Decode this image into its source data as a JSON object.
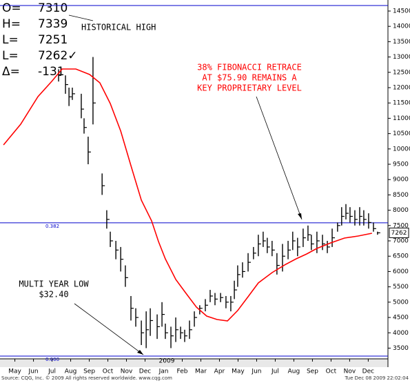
{
  "chart_data": {
    "type": "ohlc",
    "quote_box": [
      [
        "O=",
        "7310"
      ],
      [
        "H=",
        "7339"
      ],
      [
        "L=",
        "7251"
      ],
      [
        "L=",
        "7262✓"
      ],
      [
        "Δ=",
        "-131"
      ]
    ],
    "annotations": {
      "historical_high": "HISTORICAL HIGH",
      "fib_note": [
        "38% FIBONACCI RETRACE",
        "AT $75.90 REMAINS A",
        "KEY PROPRIETARY LEVEL"
      ],
      "low_note": [
        "MULTI YEAR LOW",
        "$32.40"
      ],
      "year": "2009"
    },
    "footer_left": "Source: CQG, Inc. © 2009 All rights reserved worldwide. www.cqg.com",
    "footer_right": "Tue Dec 08 2009 22:02:04",
    "xlim": [
      -0.3,
      20.56
    ],
    "xticks": [
      {
        "value": 0.5,
        "label": "May"
      },
      {
        "value": 1.5,
        "label": "Jun"
      },
      {
        "value": 2.5,
        "label": "Jul"
      },
      {
        "value": 3.5,
        "label": "Aug"
      },
      {
        "value": 4.5,
        "label": "Sep"
      },
      {
        "value": 5.5,
        "label": "Oct"
      },
      {
        "value": 6.5,
        "label": "Nov"
      },
      {
        "value": 7.5,
        "label": "Dec"
      },
      {
        "value": 8.5,
        "label": "Jan"
      },
      {
        "value": 9.5,
        "label": "Feb"
      },
      {
        "value": 10.5,
        "label": "Mar"
      },
      {
        "value": 11.5,
        "label": "Apr"
      },
      {
        "value": 12.5,
        "label": "May"
      },
      {
        "value": 13.5,
        "label": "Jun"
      },
      {
        "value": 14.5,
        "label": "Jul"
      },
      {
        "value": 15.5,
        "label": "Aug"
      },
      {
        "value": 16.5,
        "label": "Sep"
      },
      {
        "value": 17.5,
        "label": "Oct"
      },
      {
        "value": 18.5,
        "label": "Nov"
      },
      {
        "value": 19.5,
        "label": "Dec"
      }
    ],
    "ylim": [
      3150,
      14860
    ],
    "yticks": [
      3500,
      4000,
      4500,
      5000,
      5500,
      6000,
      6500,
      7000,
      7500,
      8000,
      8500,
      9000,
      9500,
      10000,
      10500,
      11000,
      11500,
      12000,
      12500,
      13000,
      13500,
      14000,
      14500
    ],
    "bar_color": "#000000",
    "bars": {
      "x": [
        2.85,
        3.22,
        3.41,
        3.59,
        4.07,
        4.22,
        4.44,
        4.7,
        5.19,
        5.44,
        5.63,
        5.93,
        6.19,
        6.44,
        6.74,
        7.0,
        7.3,
        7.56,
        7.78,
        8.15,
        8.41,
        8.59,
        8.89,
        9.15,
        9.41,
        9.63,
        9.89,
        10.15,
        10.44,
        10.74,
        11.0,
        11.26,
        11.56,
        11.85,
        12.11,
        12.3,
        12.48,
        12.74,
        13.04,
        13.33,
        13.59,
        13.85,
        14.07,
        14.33,
        14.59,
        14.89,
        15.19,
        15.44,
        15.7,
        16.0,
        16.26,
        16.44,
        16.74,
        17.04,
        17.3,
        17.56,
        17.85,
        18.07,
        18.3,
        18.52,
        18.78,
        19.04,
        19.26,
        19.52,
        19.78,
        20.0
      ],
      "high": [
        12600,
        12400,
        12000,
        12000,
        11800,
        11000,
        10400,
        13000,
        9200,
        8000,
        7300,
        7000,
        6800,
        6200,
        5200,
        4800,
        4400,
        4700,
        4800,
        4600,
        5000,
        4300,
        4200,
        4500,
        4200,
        4100,
        4400,
        4700,
        4900,
        5100,
        5400,
        5300,
        5300,
        5200,
        5200,
        5700,
        6200,
        6300,
        6600,
        6800,
        7200,
        7300,
        7100,
        7000,
        6600,
        6900,
        7000,
        7300,
        7100,
        7400,
        7500,
        7200,
        7300,
        7200,
        7000,
        7400,
        7600,
        8100,
        8200,
        8100,
        8000,
        8100,
        8000,
        7900,
        7600,
        7300
      ],
      "low": [
        12200,
        11800,
        11400,
        11600,
        11000,
        10500,
        9500,
        10800,
        8500,
        7400,
        6800,
        6400,
        6000,
        5500,
        4400,
        4200,
        3600,
        3500,
        3900,
        3800,
        4200,
        3800,
        3500,
        3700,
        3800,
        3700,
        3800,
        4200,
        4600,
        4700,
        5000,
        4900,
        5000,
        4800,
        4700,
        5100,
        5500,
        5800,
        6000,
        6400,
        6500,
        6800,
        6600,
        6500,
        5900,
        6000,
        6400,
        6700,
        6500,
        6800,
        7000,
        6700,
        6600,
        6700,
        6600,
        6800,
        7300,
        7500,
        7700,
        7600,
        7500,
        7500,
        7500,
        7400,
        7300,
        7200
      ],
      "close": [
        12400,
        12100,
        11700,
        11800,
        11300,
        10700,
        9900,
        11500,
        8800,
        7700,
        7000,
        6700,
        6400,
        5800,
        4800,
        4500,
        4000,
        4100,
        4400,
        4200,
        4600,
        4000,
        3900,
        4100,
        4000,
        3900,
        4100,
        4500,
        4800,
        4900,
        5200,
        5100,
        5150,
        5000,
        5000,
        5400,
        5900,
        6000,
        6300,
        6600,
        6900,
        7000,
        6800,
        6700,
        6200,
        6500,
        6700,
        7000,
        6800,
        7100,
        7200,
        6900,
        7000,
        6900,
        6800,
        7100,
        7500,
        7800,
        7900,
        7800,
        7700,
        7800,
        7700,
        7600,
        7400,
        7262
      ]
    },
    "moving_average": {
      "color": "#ff0000",
      "x": [
        -0.11,
        0.81,
        1.74,
        2.48,
        3.04,
        3.78,
        4.52,
        5.07,
        5.63,
        6.19,
        6.74,
        7.3,
        7.85,
        8.22,
        8.59,
        9.15,
        9.7,
        10.26,
        10.81,
        11.37,
        11.93,
        12.48,
        13.04,
        13.59,
        14.33,
        15.07,
        15.63,
        16.19,
        16.74,
        17.48,
        18.22,
        18.96,
        19.7
      ],
      "values": [
        10131,
        10807,
        11708,
        12203,
        12608,
        12608,
        12428,
        12158,
        11482,
        10581,
        9456,
        8330,
        7654,
        6978,
        6415,
        5740,
        5290,
        4839,
        4547,
        4434,
        4389,
        4726,
        5177,
        5627,
        5965,
        6235,
        6415,
        6573,
        6753,
        6933,
        7091,
        7159,
        7249
      ]
    },
    "hlines": [
      {
        "value": 14680,
        "color": "#0000cc"
      },
      {
        "value": 7590,
        "label": "0.382",
        "color": "#0000cc"
      },
      {
        "value": 3240,
        "label": "0.000",
        "color": "#0000cc"
      }
    ],
    "last_price": 7262
  }
}
